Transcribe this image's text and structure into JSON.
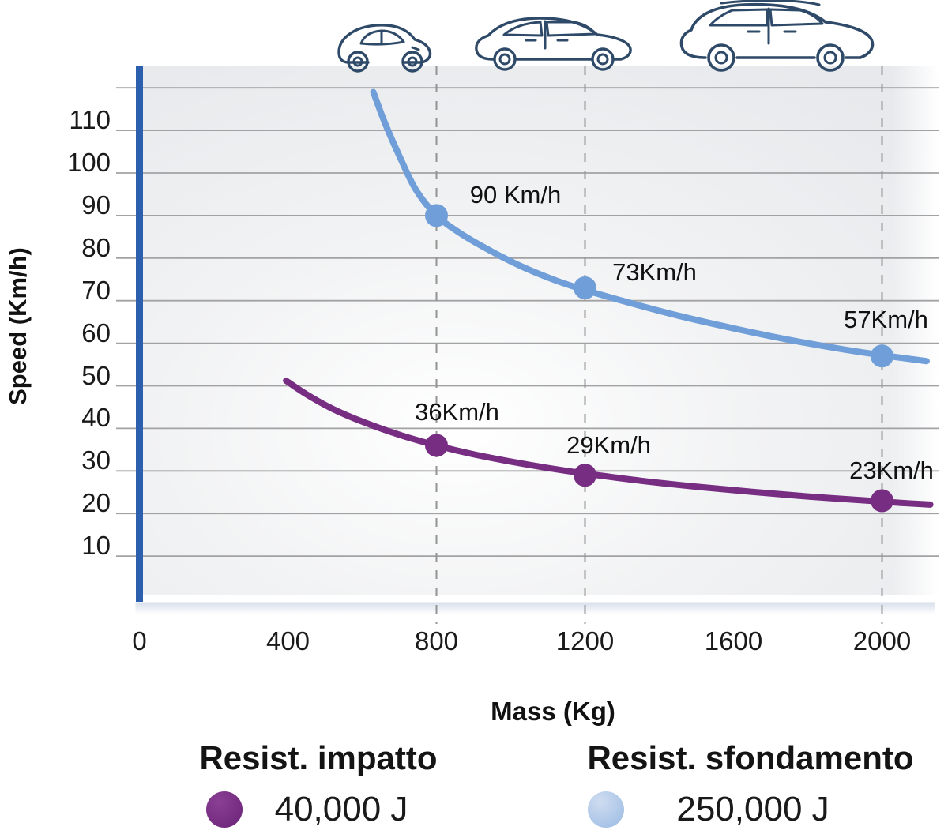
{
  "axes": {
    "x_label": "Mass (Kg)",
    "y_label": "Speed (Km/h)",
    "x_ticks": [
      0,
      400,
      800,
      1200,
      1600,
      2000
    ],
    "y_ticks": [
      10,
      20,
      30,
      40,
      50,
      60,
      70,
      80,
      90,
      100,
      110
    ]
  },
  "legend": {
    "impatto": {
      "title": "Resist. impatto",
      "value": "40,000 J",
      "color": "#722a7e"
    },
    "sfondamento": {
      "title": "Resist. sfondamento",
      "value": "250,000 J",
      "color": "#a4c1e6"
    }
  },
  "style_colors": {
    "axis_blue": "#2c5fae",
    "axis_blue_right": "#9bacd8",
    "grid_gray": "#a2a2a4",
    "dash_gray": "#939393",
    "impatto_curve": "#762d82",
    "sfondamento_curve": "#6f9ed8",
    "car_outline": "#2e4a68"
  },
  "icons": [
    {
      "name": "city-car-icon",
      "meaning": "small city car",
      "mass_position": 800
    },
    {
      "name": "hatchback-icon",
      "meaning": "compact hatchback",
      "mass_position": 1200
    },
    {
      "name": "suv-icon",
      "meaning": "large SUV",
      "mass_position": 2000
    }
  ],
  "chart_data": {
    "type": "line",
    "title": "",
    "xlabel": "Mass (Kg)",
    "ylabel": "Speed (Km/h)",
    "xlim": [
      0,
      2140
    ],
    "ylim": [
      0,
      125
    ],
    "x_ticks": [
      0,
      400,
      800,
      1200,
      1600,
      2000
    ],
    "y_ticks": [
      10,
      20,
      30,
      40,
      50,
      60,
      70,
      80,
      90,
      100,
      110
    ],
    "grid": "horizontal-solid, vertical-dashed-at-800-1200-2000",
    "grid_y_max": 120,
    "dashed_x": [
      800,
      1200,
      2000
    ],
    "legend_position": "bottom",
    "series": [
      {
        "name": "Resist. impatto",
        "energy": "40,000 J",
        "color": "#762d82",
        "points": [
          {
            "x": 800,
            "y": 36,
            "label": "36Km/h",
            "dx": 26,
            "dy": -42
          },
          {
            "x": 1200,
            "y": 29,
            "label": "29Km/h",
            "dx": 30,
            "dy": -38
          },
          {
            "x": 2000,
            "y": 23,
            "label": "23Km/h",
            "dx": 12,
            "dy": -38
          }
        ],
        "curve": [
          [
            395,
            51.2
          ],
          [
            450,
            48
          ],
          [
            520,
            44.6
          ],
          [
            600,
            41.6
          ],
          [
            700,
            38.5
          ],
          [
            800,
            36
          ],
          [
            900,
            33.9
          ],
          [
            1000,
            32.2
          ],
          [
            1100,
            30.7
          ],
          [
            1200,
            29.4
          ],
          [
            1350,
            27.7
          ],
          [
            1500,
            26.3
          ],
          [
            1650,
            25.1
          ],
          [
            1800,
            24.0
          ],
          [
            1950,
            23.1
          ],
          [
            2050,
            22.5
          ],
          [
            2130,
            22.1
          ]
        ]
      },
      {
        "name": "Resist. sfondamento",
        "energy": "250,000 J",
        "color": "#6f9ed8",
        "points": [
          {
            "x": 800,
            "y": 90,
            "label": "90 Km/h",
            "dx": 100,
            "dy": -26
          },
          {
            "x": 1200,
            "y": 73,
            "label": "73Km/h",
            "dx": 88,
            "dy": -20
          },
          {
            "x": 2000,
            "y": 57,
            "label": "57Km/h",
            "dx": 5,
            "dy": -46
          }
        ],
        "curve": [
          [
            630,
            119
          ],
          [
            660,
            112
          ],
          [
            700,
            104
          ],
          [
            745,
            96
          ],
          [
            800,
            90
          ],
          [
            870,
            85.5
          ],
          [
            950,
            81.5
          ],
          [
            1030,
            78
          ],
          [
            1120,
            74.8
          ],
          [
            1200,
            72.5
          ],
          [
            1320,
            69.5
          ],
          [
            1450,
            66.5
          ],
          [
            1600,
            63.5
          ],
          [
            1750,
            60.8
          ],
          [
            1900,
            58.5
          ],
          [
            2000,
            57.2
          ],
          [
            2120,
            55.8
          ]
        ]
      }
    ]
  }
}
